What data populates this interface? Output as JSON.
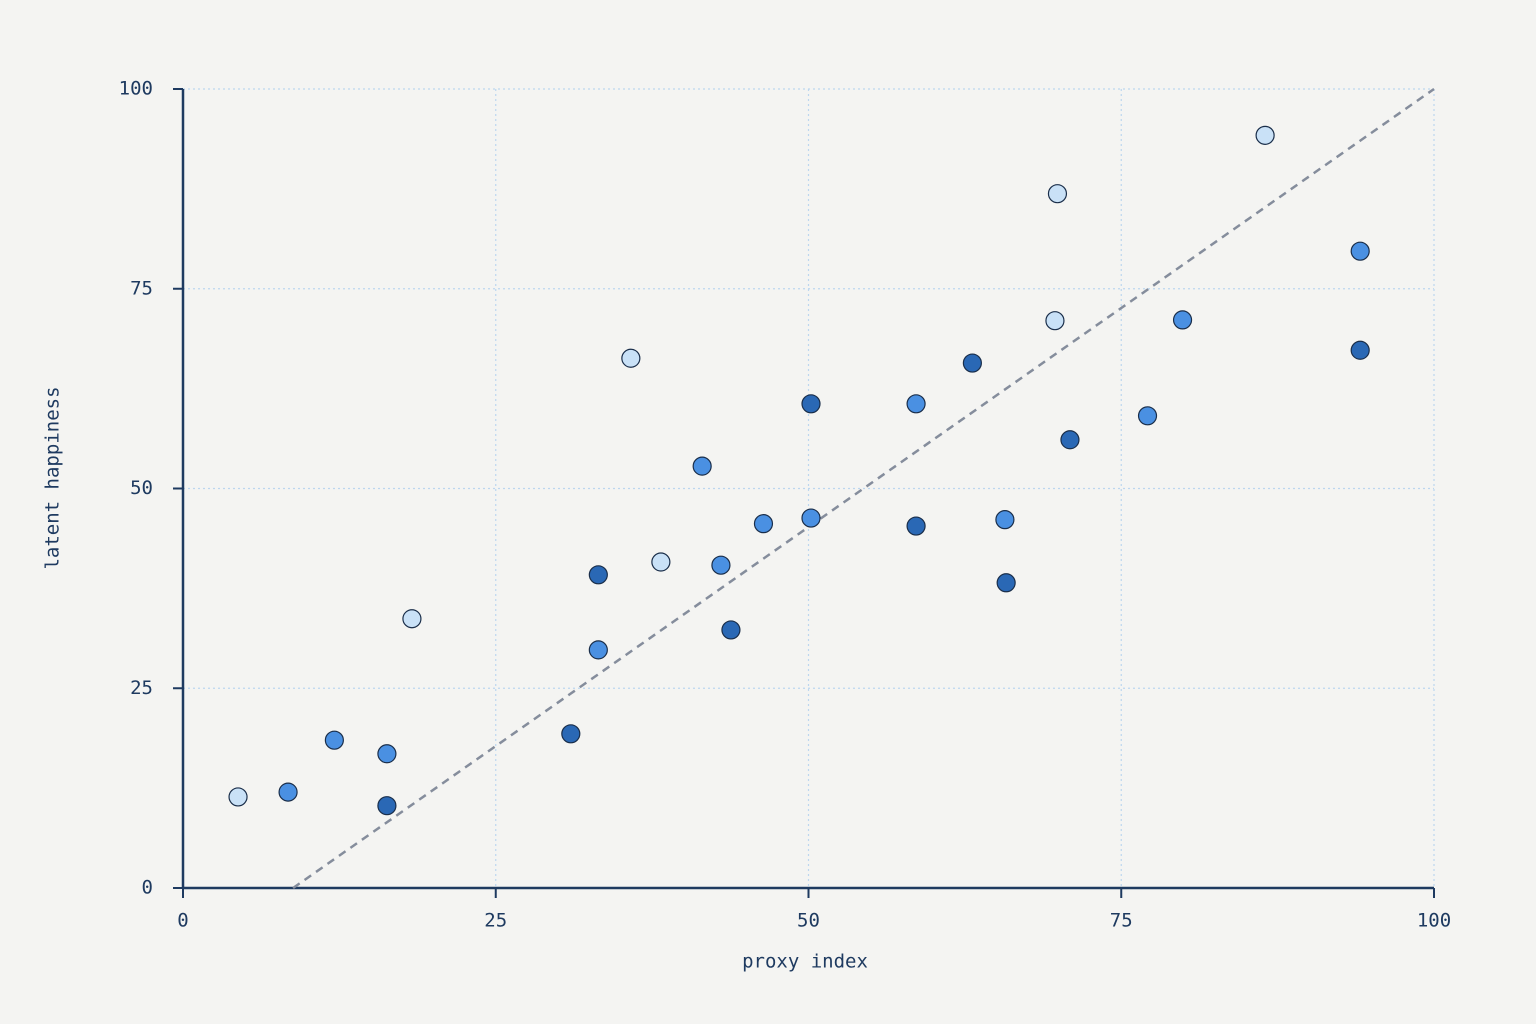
{
  "chart_data": {
    "type": "scatter",
    "xlabel": "proxy index",
    "ylabel": "latent happiness",
    "x": [
      4.4,
      8.4,
      12.1,
      16.3,
      16.3,
      18.3,
      31.0,
      33.2,
      33.2,
      35.8,
      38.2,
      41.5,
      43.0,
      43.8,
      46.4,
      50.2,
      50.2,
      58.6,
      58.6,
      63.1,
      65.7,
      65.8,
      69.7,
      69.9,
      70.9,
      77.1,
      79.9,
      86.5,
      94.1,
      94.1
    ],
    "values": [
      11.4,
      12.0,
      18.5,
      16.8,
      10.3,
      33.7,
      19.3,
      39.2,
      29.8,
      66.3,
      40.8,
      52.8,
      40.4,
      32.3,
      45.6,
      60.6,
      46.3,
      60.6,
      45.3,
      65.7,
      46.1,
      38.2,
      71.0,
      86.9,
      56.1,
      59.1,
      71.1,
      94.2,
      79.7,
      67.3
    ],
    "colors": [
      "#c9e1f7",
      "#4a90e2",
      "#4a90e2",
      "#4a90e2",
      "#2a68b5",
      "#c9e1f7",
      "#2a68b5",
      "#2a68b5",
      "#4a90e2",
      "#c9e1f7",
      "#c9e1f7",
      "#4a90e2",
      "#4a90e2",
      "#2a68b5",
      "#4a90e2",
      "#2a68b5",
      "#4a90e2",
      "#4a90e2",
      "#2a68b5",
      "#2a68b5",
      "#4a90e2",
      "#2a68b5",
      "#c9e1f7",
      "#c9e1f7",
      "#2a68b5",
      "#4a90e2",
      "#4a90e2",
      "#c9e1f7",
      "#4a90e2",
      "#2a68b5"
    ],
    "reference_line": {
      "x": [
        8.8,
        100
      ],
      "y": [
        0,
        100
      ],
      "color": "#858d9c"
    },
    "xlim": [
      0,
      100
    ],
    "ylim": [
      0,
      100
    ],
    "xticks": [
      0,
      25,
      50,
      75,
      100
    ],
    "yticks": [
      0,
      25,
      50,
      75,
      100
    ],
    "grid": true
  }
}
